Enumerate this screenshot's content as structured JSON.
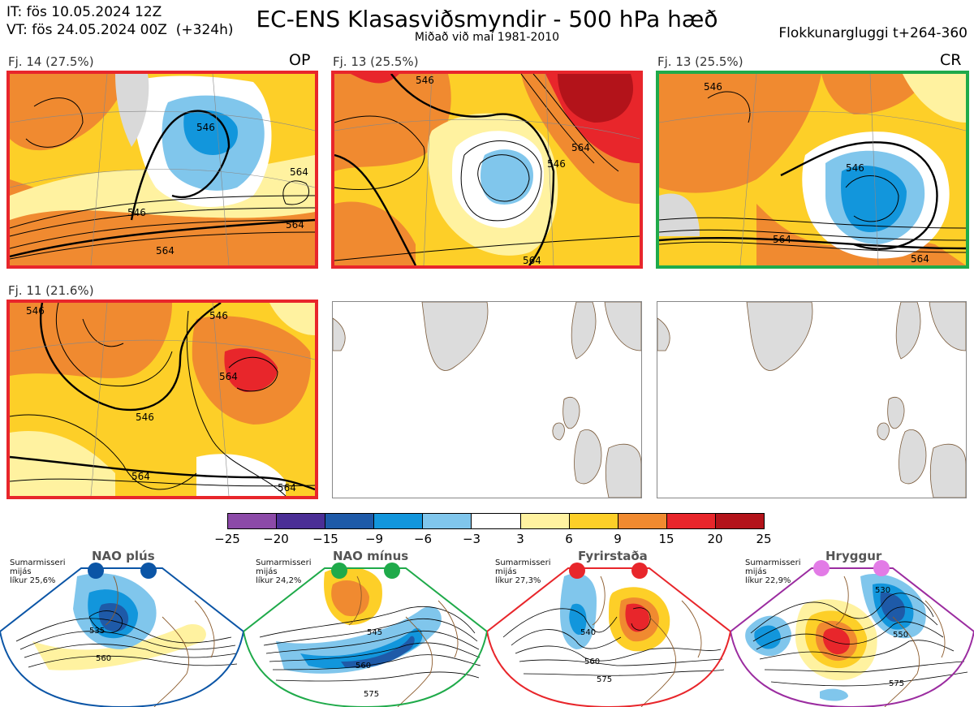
{
  "header": {
    "it_line": "IT: fös 10.05.2024 12Z",
    "vt_line": "VT: fös 24.05.2024 00Z  (+324h)",
    "title": "EC-ENS Klasasviðsmyndir - 500 hPa hæð",
    "subtitle": "Miðað við maí 1981-2010",
    "window": "Flokkunargluggi t+264-360"
  },
  "panels": [
    {
      "label": "Fj. 14 (27.5%)",
      "tag": "OP",
      "border": "#e8262b",
      "contours": [
        "546",
        "546",
        "564",
        "564",
        "564"
      ]
    },
    {
      "label": "Fj. 13 (25.5%)",
      "tag": "",
      "border": "#e8262b",
      "contours": [
        "546",
        "564",
        "546",
        "564"
      ]
    },
    {
      "label": "Fj. 13 (25.5%)",
      "tag": "CR",
      "border": "#1faa4a",
      "contours": [
        "546",
        "546",
        "564",
        "564"
      ]
    },
    {
      "label": "Fj. 11 (21.6%)",
      "tag": "",
      "border": "#e8262b",
      "contours": [
        "546",
        "546",
        "546",
        "564",
        "564",
        "564"
      ]
    }
  ],
  "colorbar": {
    "ticks": [
      "−25",
      "−20",
      "−15",
      "−9",
      "−6",
      "−3",
      "3",
      "6",
      "9",
      "15",
      "20",
      "25"
    ],
    "colors": [
      "#8c4aa8",
      "#4b2f96",
      "#1e5aa8",
      "#1296dc",
      "#80c6ec",
      "#ffffff",
      "#fff2a0",
      "#fdcf28",
      "#f08a30",
      "#e8262b",
      "#b3131a"
    ]
  },
  "regimes": [
    {
      "name": "NAO plús",
      "info": "Sumarmisseri\nmijás\nlíkur 25,6%",
      "color": "#0b55a6",
      "labels": [
        "535",
        "560"
      ]
    },
    {
      "name": "NAO mínus",
      "info": "Sumarmisseri\nmijás\nlíkur 24,2%",
      "color": "#1faa4a",
      "labels": [
        "545",
        "560",
        "575"
      ]
    },
    {
      "name": "Fyrirstaða",
      "info": "Sumarmisseri\nmijás\nlíkur 27,3%",
      "color": "#e8262b",
      "labels": [
        "540",
        "560",
        "575"
      ]
    },
    {
      "name": "Hryggur",
      "info": "Sumarmisseri\nmijás\nlíkur 22,9%",
      "color": "#9b2ca0",
      "labels": [
        "530",
        "550",
        "575"
      ]
    }
  ]
}
